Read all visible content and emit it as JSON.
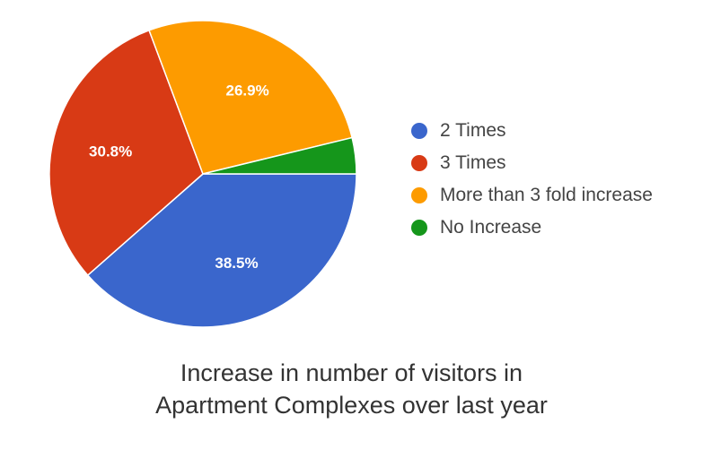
{
  "chart_data": {
    "type": "pie",
    "title_lines": [
      "Increase in number of visitors in",
      "Apartment Complexes over last year"
    ],
    "legend_position": "right",
    "slices": [
      {
        "label": "2 Times",
        "value": 38.5,
        "value_label": "38.5%",
        "color": "#3a66cc"
      },
      {
        "label": "3 Times",
        "value": 30.8,
        "value_label": "30.8%",
        "color": "#d83a15"
      },
      {
        "label": "More than 3 fold increase",
        "value": 26.9,
        "value_label": "26.9%",
        "color": "#fd9b00"
      },
      {
        "label": "No Increase",
        "value": 3.8,
        "value_label": "",
        "color": "#15961b"
      }
    ]
  }
}
